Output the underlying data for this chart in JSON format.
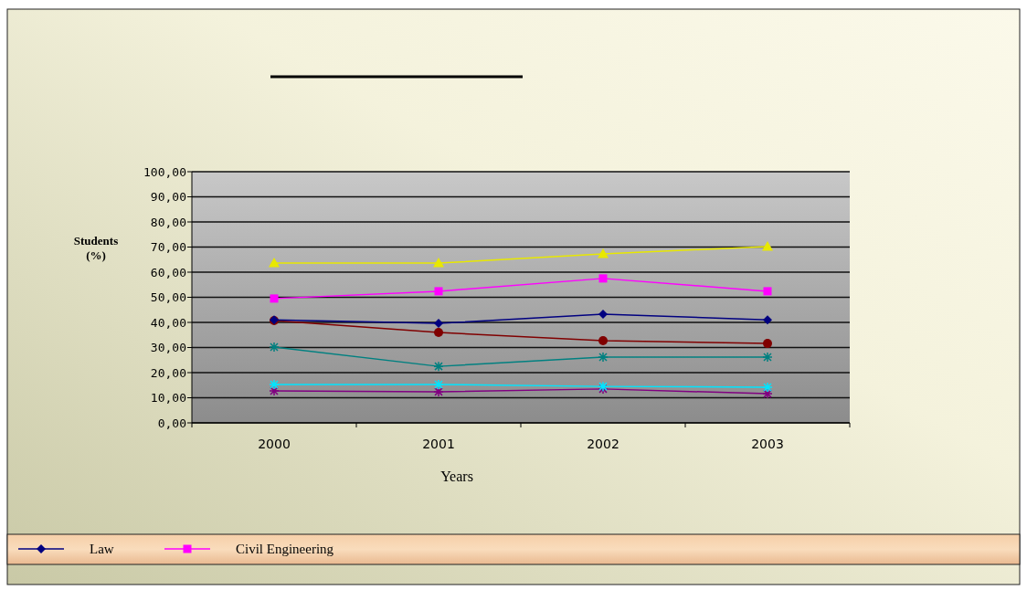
{
  "chart_data": {
    "type": "line",
    "xlabel": "Years",
    "ylabel": "Students (%)",
    "categories": [
      "2000",
      "2001",
      "2002",
      "2003"
    ],
    "series": [
      {
        "name": "Law",
        "color": "#000080",
        "marker": "diamond",
        "values": [
          41,
          39.6,
          43.3,
          41
        ]
      },
      {
        "name": "Civil Engineering",
        "color": "#ff00ff",
        "marker": "square",
        "values": [
          49.5,
          52.4,
          57.5,
          52.4
        ]
      },
      {
        "color": "#e8e800",
        "marker": "triangle",
        "values": [
          63.6,
          63.6,
          67.3,
          70.2
        ]
      },
      {
        "color": "#800000",
        "marker": "circle",
        "values": [
          40.7,
          36,
          32.7,
          31.6
        ]
      },
      {
        "color": "#008080",
        "marker": "cross",
        "values": [
          30.2,
          22.5,
          26.2,
          26.2
        ]
      },
      {
        "color": "#00e5ff",
        "marker": "cross",
        "values": [
          15.3,
          15.3,
          14.5,
          14.2
        ]
      },
      {
        "color": "#800080",
        "marker": "cross",
        "values": [
          12.7,
          12.4,
          13.5,
          11.6
        ]
      }
    ],
    "ylim": [
      0,
      100
    ],
    "yticks": [
      {
        "value": 0,
        "label": "0,00"
      },
      {
        "value": 10,
        "label": "10,00"
      },
      {
        "value": 20,
        "label": "20,00"
      },
      {
        "value": 30,
        "label": "30,00"
      },
      {
        "value": 40,
        "label": "40,00"
      },
      {
        "value": 50,
        "label": "50,00"
      },
      {
        "value": 60,
        "label": "60,00"
      },
      {
        "value": 70,
        "label": "70,00"
      },
      {
        "value": 80,
        "label": "80,00"
      },
      {
        "value": 90,
        "label": "90,00"
      },
      {
        "value": 100,
        "label": "100,00"
      }
    ],
    "grid": "y",
    "legend": "bottom"
  }
}
